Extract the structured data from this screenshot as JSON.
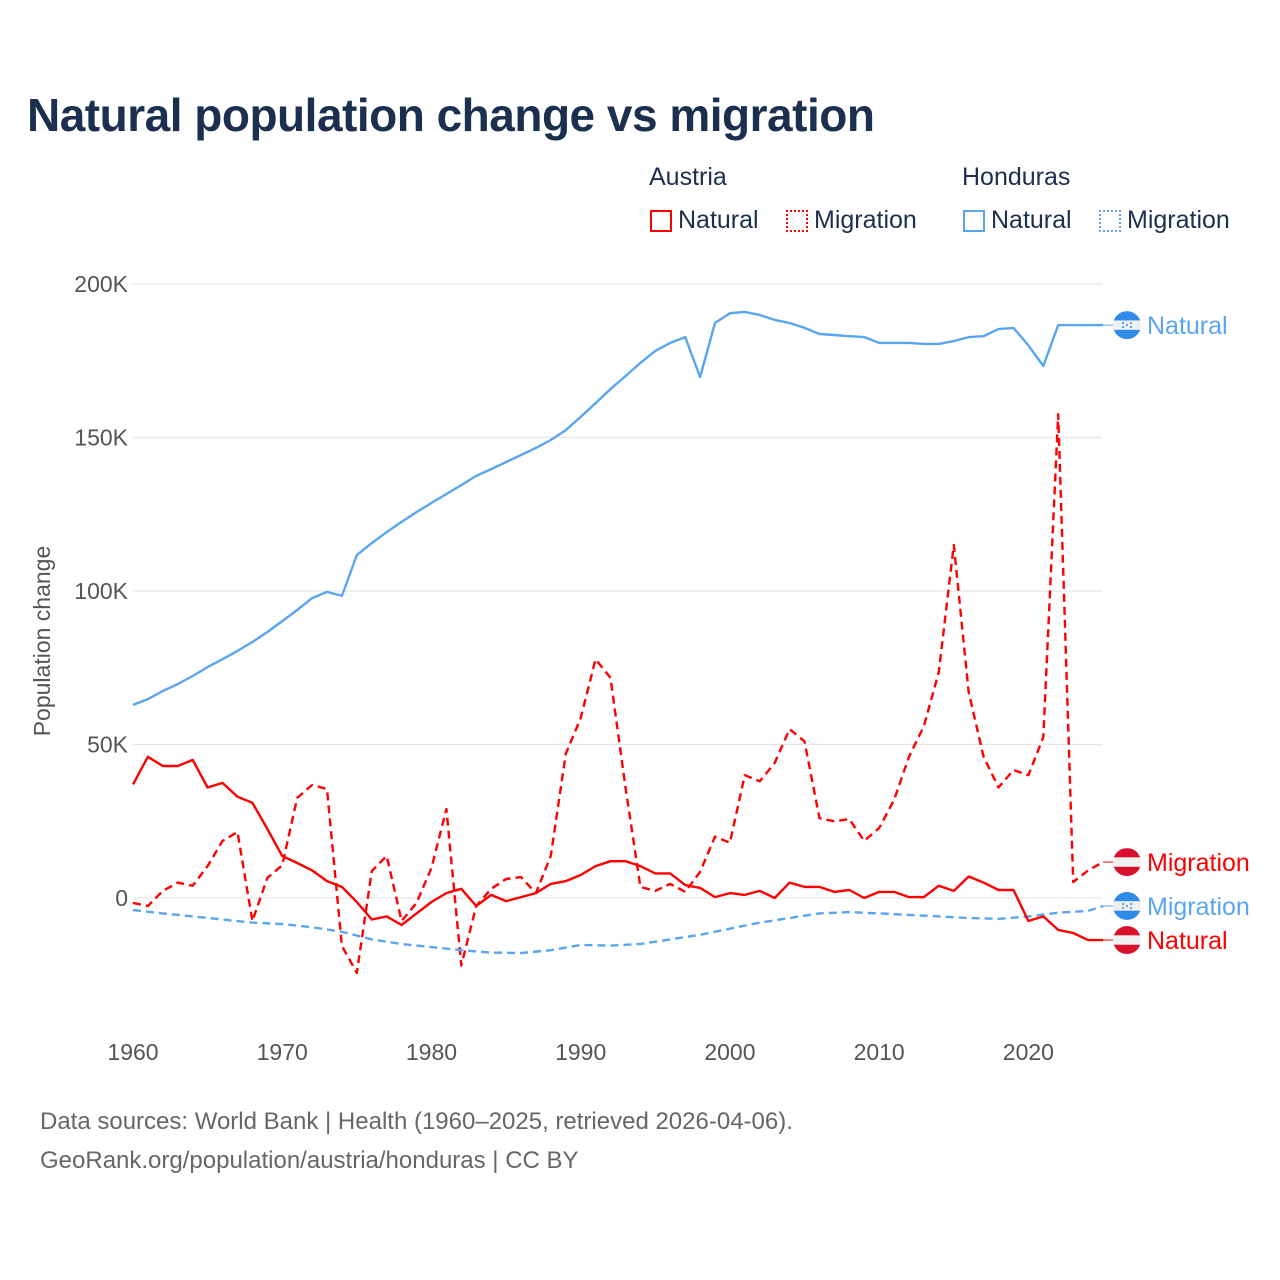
{
  "title": "Natural population change vs migration",
  "legend": {
    "groups": [
      {
        "label": "Austria",
        "items": [
          {
            "label": "Natural",
            "style": "solid",
            "color": "#ff0000"
          },
          {
            "label": "Migration",
            "style": "dotted",
            "color": "#ff0000"
          }
        ]
      },
      {
        "label": "Honduras",
        "items": [
          {
            "label": "Natural",
            "style": "solid",
            "color": "#5aa5f0"
          },
          {
            "label": "Migration",
            "style": "dotted",
            "color": "#5aa5f0"
          }
        ]
      }
    ]
  },
  "footer": {
    "line1": "Data sources: World Bank | Health (1960–2025, retrieved 2026-04-06).",
    "line2": "GeoRank.org/population/austria/honduras | CC BY"
  },
  "chart_data": {
    "type": "line",
    "title": "Natural population change vs migration",
    "xlabel": "",
    "ylabel": "Population change",
    "xlim": [
      1960,
      2025
    ],
    "ylim": [
      -30000,
      200000
    ],
    "xticks": [
      1960,
      1970,
      1980,
      1990,
      2000,
      2010,
      2020
    ],
    "xtick_labels": [
      "1960",
      "1970",
      "1980",
      "1990",
      "2000",
      "2010",
      "2020"
    ],
    "yticks": [
      0,
      50000,
      100000,
      150000,
      200000
    ],
    "ytick_labels": [
      "0",
      "50K",
      "100K",
      "150K",
      "200K"
    ],
    "grid": true,
    "legend_position": "top-right",
    "series": [
      {
        "name": "Honduras Natural",
        "country": "Honduras",
        "kind": "Natural",
        "end_label": "Natural",
        "color": "#5aa5f0",
        "dash": "solid",
        "flag": "honduras",
        "x": [
          1960,
          1961,
          1962,
          1963,
          1964,
          1965,
          1966,
          1967,
          1968,
          1969,
          1970,
          1971,
          1972,
          1973,
          1974,
          1975,
          1976,
          1977,
          1978,
          1979,
          1980,
          1981,
          1982,
          1983,
          1984,
          1985,
          1986,
          1987,
          1988,
          1989,
          1990,
          1991,
          1992,
          1993,
          1994,
          1995,
          1996,
          1997,
          1998,
          1999,
          2000,
          2001,
          2002,
          2003,
          2004,
          2005,
          2006,
          2007,
          2008,
          2009,
          2010,
          2011,
          2012,
          2013,
          2014,
          2015,
          2016,
          2017,
          2018,
          2019,
          2020,
          2021,
          2022,
          2023,
          2024,
          2025
        ],
        "y": [
          62900,
          64800,
          67400,
          69700,
          72300,
          75200,
          77800,
          80500,
          83400,
          86600,
          90200,
          93800,
          97700,
          99700,
          98400,
          111700,
          115600,
          119200,
          122500,
          125700,
          128700,
          131600,
          134500,
          137500,
          139700,
          142000,
          144300,
          146600,
          149200,
          152400,
          156700,
          161200,
          165800,
          170000,
          174300,
          178200,
          180800,
          182700,
          169700,
          187300,
          190500,
          190900,
          189900,
          188300,
          187300,
          185700,
          183700,
          183400,
          183000,
          182700,
          180800,
          180800,
          180800,
          180500,
          180500,
          181400,
          182700,
          183000,
          185300,
          185700,
          180000,
          173300,
          186600,
          186600,
          186600,
          186600
        ]
      },
      {
        "name": "Austria Migration",
        "country": "Austria",
        "kind": "Migration",
        "end_label": "Migration",
        "color": "#ff0000",
        "dash": "dashed",
        "flag": "austria",
        "x": [
          1960,
          1961,
          1962,
          1963,
          1964,
          1965,
          1966,
          1967,
          1968,
          1969,
          1970,
          1971,
          1972,
          1973,
          1974,
          1975,
          1976,
          1977,
          1978,
          1979,
          1980,
          1981,
          1982,
          1983,
          1984,
          1985,
          1986,
          1987,
          1988,
          1989,
          1990,
          1991,
          1992,
          1993,
          1994,
          1995,
          1996,
          1997,
          1998,
          1999,
          2000,
          2001,
          2002,
          2003,
          2004,
          2005,
          2006,
          2007,
          2008,
          2009,
          2010,
          2011,
          2012,
          2013,
          2014,
          2015,
          2016,
          2017,
          2018,
          2019,
          2020,
          2021,
          2022,
          2023,
          2024,
          2025
        ],
        "y": [
          -1600,
          -2600,
          2300,
          5000,
          4000,
          10400,
          18600,
          21500,
          -7500,
          6500,
          10700,
          32600,
          36800,
          35500,
          -15600,
          -24400,
          8800,
          13700,
          -7500,
          -1600,
          9800,
          29000,
          -22000,
          -2600,
          3000,
          6200,
          6800,
          1600,
          13700,
          47000,
          58600,
          77800,
          71700,
          36000,
          3600,
          2300,
          4600,
          2000,
          8500,
          20000,
          18000,
          40000,
          38000,
          44000,
          55000,
          51000,
          26000,
          25000,
          25700,
          18600,
          22800,
          32000,
          46000,
          56000,
          73600,
          115000,
          67000,
          46000,
          36000,
          41700,
          40000,
          52400,
          157600,
          5200,
          9000,
          11700
        ]
      },
      {
        "name": "Honduras Migration",
        "country": "Honduras",
        "kind": "Migration",
        "end_label": "Migration",
        "color": "#5aa5f0",
        "dash": "dashed",
        "flag": "honduras",
        "x": [
          1960,
          1962,
          1964,
          1966,
          1968,
          1970,
          1972,
          1974,
          1976,
          1978,
          1980,
          1982,
          1984,
          1986,
          1988,
          1990,
          1992,
          1994,
          1996,
          1998,
          2000,
          2002,
          2004,
          2006,
          2008,
          2010,
          2012,
          2014,
          2016,
          2018,
          2020,
          2022,
          2024,
          2025
        ],
        "y": [
          -3900,
          -5000,
          -6000,
          -7000,
          -8000,
          -8500,
          -9500,
          -11000,
          -13500,
          -15000,
          -16000,
          -17000,
          -17800,
          -17900,
          -17000,
          -15300,
          -15500,
          -15000,
          -13500,
          -12000,
          -10000,
          -8000,
          -6500,
          -5000,
          -4600,
          -5000,
          -5500,
          -6000,
          -6500,
          -6800,
          -6000,
          -4800,
          -4200,
          -2600
        ]
      },
      {
        "name": "Austria Natural",
        "country": "Austria",
        "kind": "Natural",
        "end_label": "Natural",
        "color": "#ff0000",
        "dash": "solid",
        "flag": "austria",
        "x": [
          1960,
          1961,
          1962,
          1963,
          1964,
          1965,
          1966,
          1967,
          1968,
          1969,
          1970,
          1971,
          1972,
          1973,
          1974,
          1975,
          1976,
          1977,
          1978,
          1979,
          1980,
          1981,
          1982,
          1983,
          1984,
          1985,
          1986,
          1987,
          1988,
          1989,
          1990,
          1991,
          1992,
          1993,
          1994,
          1995,
          1996,
          1997,
          1998,
          1999,
          2000,
          2001,
          2002,
          2003,
          2004,
          2005,
          2006,
          2007,
          2008,
          2009,
          2010,
          2011,
          2012,
          2013,
          2014,
          2015,
          2016,
          2017,
          2018,
          2019,
          2020,
          2021,
          2022,
          2023,
          2024,
          2025
        ],
        "y": [
          37000,
          46000,
          43000,
          43000,
          45000,
          36000,
          37500,
          33000,
          31000,
          22500,
          13700,
          11400,
          9000,
          5500,
          3600,
          -1300,
          -7000,
          -6000,
          -8800,
          -5000,
          -1300,
          1600,
          3000,
          -2600,
          1000,
          -1000,
          300,
          1600,
          4600,
          5500,
          7500,
          10400,
          12000,
          12000,
          10400,
          8000,
          8000,
          4200,
          3300,
          300,
          1600,
          1000,
          2300,
          0,
          5000,
          3600,
          3600,
          2000,
          2600,
          0,
          2000,
          2000,
          300,
          300,
          4000,
          2300,
          7000,
          5000,
          2600,
          2600,
          -7500,
          -6000,
          -10400,
          -11400,
          -13700,
          -13700
        ]
      }
    ]
  }
}
